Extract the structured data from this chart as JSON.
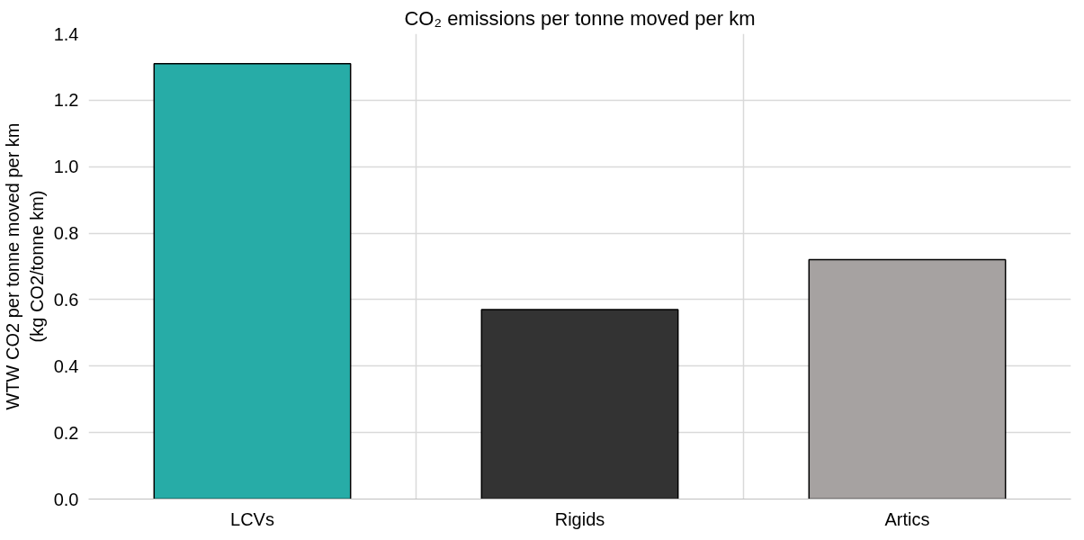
{
  "chart_data": {
    "type": "bar",
    "title": "CO₂ emissions per tonne moved per km",
    "ylabel": "WTW CO2 per tonne moved per km\n(kg CO2/tonne km)",
    "categories": [
      "LCVs",
      "Rigids",
      "Artics"
    ],
    "values": [
      1.31,
      0.57,
      0.72
    ],
    "colors": [
      "#27aca7",
      "#333333",
      "#a6a2a1"
    ],
    "ylim": [
      0,
      1.4
    ],
    "yticks": [
      {
        "value": 0,
        "label": "0.0"
      },
      {
        "value": 0.2,
        "label": "0.2"
      },
      {
        "value": 0.4,
        "label": "0.4"
      },
      {
        "value": 0.6,
        "label": "0.6"
      },
      {
        "value": 0.8,
        "label": "0.8"
      },
      {
        "value": 1.0,
        "label": "1.0"
      },
      {
        "value": 1.2,
        "label": "1.2"
      },
      {
        "value": 1.4,
        "label": "1.4"
      }
    ],
    "grid": true
  }
}
